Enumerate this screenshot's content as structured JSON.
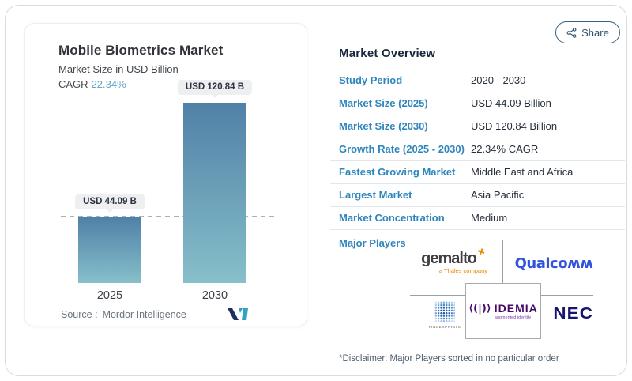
{
  "share": {
    "label": "Share"
  },
  "chart_card": {
    "title": "Mobile Biometrics Market",
    "subtitle": "Market Size in USD Billion",
    "cagr_label": "CAGR",
    "cagr_value": "22.34%",
    "source_label": "Source :",
    "source_value": "Mordor Intelligence"
  },
  "chart_data": {
    "type": "bar",
    "title": "Mobile Biometrics Market",
    "subtitle": "Market Size in USD Billion",
    "unit": "USD Billion",
    "cagr": "22.34%",
    "categories": [
      "2025",
      "2030"
    ],
    "values": [
      44.09,
      120.84
    ],
    "bar_labels": [
      "USD 44.09 B",
      "USD 120.84 B"
    ],
    "ylim": [
      0,
      130
    ],
    "gridline": {
      "type": "dashed",
      "at_value": 44.09
    },
    "bar_color_top": "#4f81a7",
    "bar_color_bottom": "#87bfca",
    "legend": "none",
    "axes": "hidden"
  },
  "overview": {
    "title": "Market Overview",
    "rows": [
      {
        "label": "Study Period",
        "value": "2020 - 2030"
      },
      {
        "label": "Market Size (2025)",
        "value": "USD 44.09 Billion"
      },
      {
        "label": "Market Size (2030)",
        "value": "USD 120.84 Billion"
      },
      {
        "label": "Growth Rate (2025 - 2030)",
        "value": "22.34% CAGR"
      },
      {
        "label": "Fastest Growing Market",
        "value": "Middle East and Africa"
      },
      {
        "label": "Largest Market",
        "value": "Asia Pacific"
      },
      {
        "label": "Market Concentration",
        "value": "Medium"
      }
    ],
    "major_players_label": "Major Players",
    "players": [
      {
        "name": "Gemalto",
        "logo_text": "gemalto",
        "tagline": "a Thales company"
      },
      {
        "name": "Qualcomm",
        "logo_text": "Qualcoʍʍ"
      },
      {
        "name": "Fingerprint Cards",
        "logo_text": "FINGERPRINTS"
      },
      {
        "name": "IDEMIA",
        "symbol": "⟨(|)⟩",
        "logo_text": "IDEMIA",
        "tagline": "augmented identity"
      },
      {
        "name": "NEC",
        "logo_text": "NEC"
      }
    ],
    "disclaimer": "*Disclaimer: Major Players sorted in no particular order"
  }
}
